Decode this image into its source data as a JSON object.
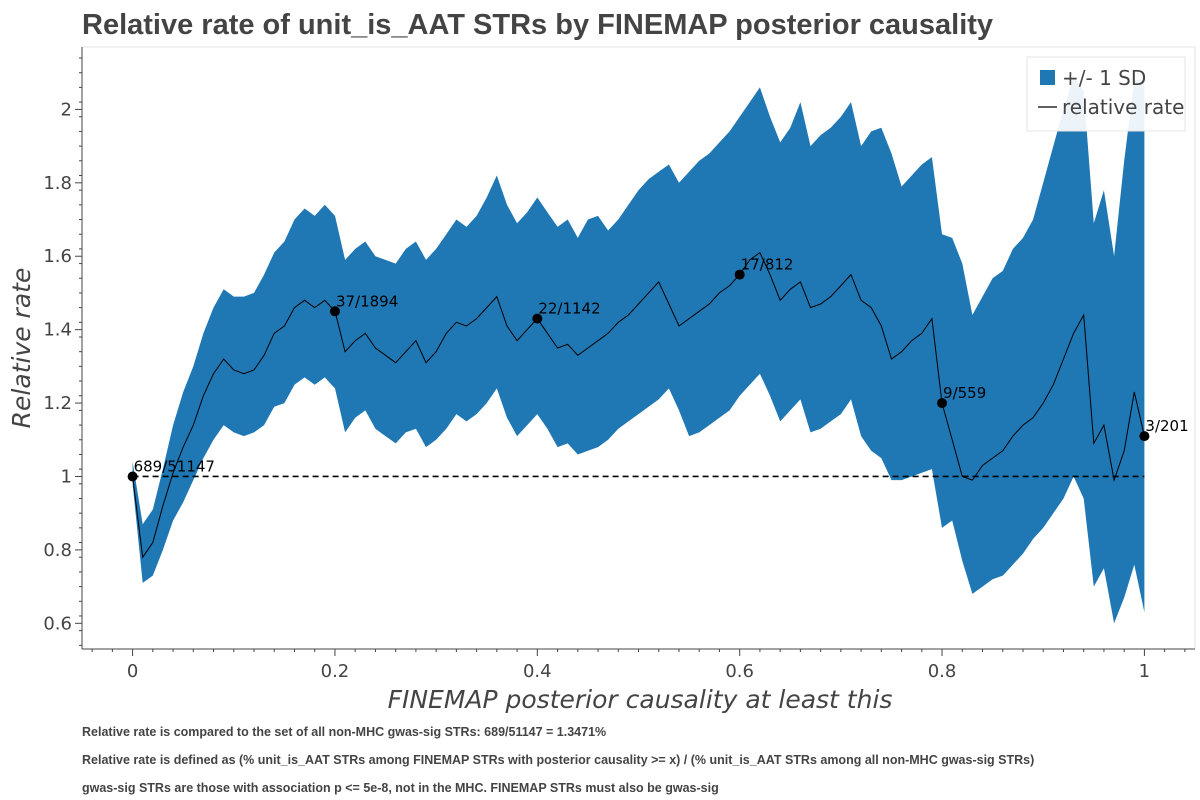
{
  "chart_data": {
    "type": "line",
    "title": "Relative rate of unit_is_AAT STRs by FINEMAP posterior causality",
    "xlabel": "FINEMAP posterior causality at least this",
    "ylabel": "Relative rate",
    "xlim": [
      -0.05,
      1.05
    ],
    "ylim": [
      0.53,
      2.17
    ],
    "xticks": [
      0,
      0.2,
      0.4,
      0.6,
      0.8,
      1
    ],
    "xtick_labels": [
      "0",
      "0.2",
      "0.4",
      "0.6",
      "0.8",
      "1"
    ],
    "yticks": [
      0.6,
      0.8,
      1,
      1.2,
      1.4,
      1.6,
      1.8,
      2
    ],
    "ytick_labels": [
      "0.6",
      "0.8",
      "1",
      "1.2",
      "1.4",
      "1.6",
      "1.8",
      "2"
    ],
    "grid": false,
    "legend_position": "top-right",
    "legend": [
      {
        "label": "+/- 1 SD",
        "type": "band",
        "color": "#1f77b4"
      },
      {
        "label": "relative rate",
        "type": "line",
        "color": "#000000"
      }
    ],
    "reference_line": {
      "y": 1,
      "style": "dashed",
      "color": "#000000"
    },
    "band": {
      "color": "#1f77b4",
      "x": [
        0,
        0.01,
        0.02,
        0.03,
        0.04,
        0.05,
        0.06,
        0.07,
        0.08,
        0.09,
        0.1,
        0.11,
        0.12,
        0.13,
        0.14,
        0.15,
        0.16,
        0.17,
        0.18,
        0.19,
        0.2,
        0.21,
        0.22,
        0.23,
        0.24,
        0.25,
        0.26,
        0.27,
        0.28,
        0.29,
        0.3,
        0.31,
        0.32,
        0.33,
        0.34,
        0.35,
        0.36,
        0.37,
        0.38,
        0.39,
        0.4,
        0.41,
        0.42,
        0.43,
        0.44,
        0.45,
        0.46,
        0.47,
        0.48,
        0.49,
        0.5,
        0.51,
        0.52,
        0.53,
        0.54,
        0.55,
        0.56,
        0.57,
        0.58,
        0.59,
        0.6,
        0.61,
        0.62,
        0.63,
        0.64,
        0.65,
        0.66,
        0.67,
        0.68,
        0.69,
        0.7,
        0.71,
        0.72,
        0.73,
        0.74,
        0.75,
        0.76,
        0.77,
        0.78,
        0.79,
        0.8,
        0.81,
        0.82,
        0.83,
        0.84,
        0.85,
        0.86,
        0.87,
        0.88,
        0.89,
        0.9,
        0.91,
        0.92,
        0.93,
        0.94,
        0.95,
        0.96,
        0.97,
        0.98,
        0.99,
        1
      ],
      "upper": [
        1.04,
        0.87,
        0.91,
        1.02,
        1.14,
        1.23,
        1.3,
        1.39,
        1.46,
        1.51,
        1.49,
        1.49,
        1.5,
        1.55,
        1.61,
        1.64,
        1.7,
        1.73,
        1.71,
        1.74,
        1.71,
        1.59,
        1.62,
        1.64,
        1.6,
        1.59,
        1.58,
        1.62,
        1.64,
        1.59,
        1.62,
        1.66,
        1.7,
        1.68,
        1.71,
        1.76,
        1.82,
        1.74,
        1.69,
        1.72,
        1.76,
        1.72,
        1.68,
        1.7,
        1.65,
        1.7,
        1.71,
        1.67,
        1.7,
        1.74,
        1.78,
        1.81,
        1.83,
        1.85,
        1.8,
        1.83,
        1.86,
        1.88,
        1.91,
        1.94,
        1.98,
        2.02,
        2.06,
        1.98,
        1.91,
        1.95,
        2.02,
        1.9,
        1.93,
        1.95,
        1.98,
        2.02,
        1.9,
        1.94,
        1.95,
        1.88,
        1.79,
        1.82,
        1.85,
        1.87,
        1.66,
        1.65,
        1.58,
        1.44,
        1.49,
        1.54,
        1.56,
        1.62,
        1.65,
        1.7,
        1.8,
        1.9,
        2.0,
        2.09,
        2.05,
        1.69,
        1.78,
        1.6,
        1.86,
        2.08,
        2.08
      ],
      "lower": [
        0.98,
        0.71,
        0.73,
        0.8,
        0.88,
        0.93,
        0.99,
        1.05,
        1.1,
        1.14,
        1.12,
        1.11,
        1.12,
        1.14,
        1.19,
        1.2,
        1.25,
        1.27,
        1.25,
        1.27,
        1.24,
        1.12,
        1.16,
        1.18,
        1.13,
        1.11,
        1.09,
        1.12,
        1.13,
        1.08,
        1.1,
        1.13,
        1.17,
        1.15,
        1.17,
        1.2,
        1.24,
        1.16,
        1.11,
        1.14,
        1.17,
        1.13,
        1.08,
        1.09,
        1.06,
        1.07,
        1.08,
        1.1,
        1.13,
        1.15,
        1.17,
        1.19,
        1.21,
        1.24,
        1.18,
        1.11,
        1.12,
        1.14,
        1.16,
        1.18,
        1.22,
        1.25,
        1.28,
        1.22,
        1.15,
        1.18,
        1.21,
        1.12,
        1.13,
        1.15,
        1.17,
        1.21,
        1.11,
        1.07,
        1.05,
        0.99,
        0.99,
        1.0,
        1.01,
        1.02,
        0.86,
        0.88,
        0.77,
        0.68,
        0.7,
        0.72,
        0.73,
        0.76,
        0.79,
        0.83,
        0.86,
        0.9,
        0.94,
        1.0,
        0.94,
        0.7,
        0.75,
        0.6,
        0.67,
        0.76,
        0.63
      ]
    },
    "series": [
      {
        "color": "#000000",
        "x": [
          0,
          0.01,
          0.02,
          0.03,
          0.04,
          0.05,
          0.06,
          0.07,
          0.08,
          0.09,
          0.1,
          0.11,
          0.12,
          0.13,
          0.14,
          0.15,
          0.16,
          0.17,
          0.18,
          0.19,
          0.2,
          0.21,
          0.22,
          0.23,
          0.24,
          0.25,
          0.26,
          0.27,
          0.28,
          0.29,
          0.3,
          0.31,
          0.32,
          0.33,
          0.34,
          0.35,
          0.36,
          0.37,
          0.38,
          0.39,
          0.4,
          0.41,
          0.42,
          0.43,
          0.44,
          0.45,
          0.46,
          0.47,
          0.48,
          0.49,
          0.5,
          0.51,
          0.52,
          0.53,
          0.54,
          0.55,
          0.56,
          0.57,
          0.58,
          0.59,
          0.6,
          0.61,
          0.62,
          0.63,
          0.64,
          0.65,
          0.66,
          0.67,
          0.68,
          0.69,
          0.7,
          0.71,
          0.72,
          0.73,
          0.74,
          0.75,
          0.76,
          0.77,
          0.78,
          0.79,
          0.8,
          0.81,
          0.82,
          0.83,
          0.84,
          0.85,
          0.86,
          0.87,
          0.88,
          0.89,
          0.9,
          0.91,
          0.92,
          0.93,
          0.94,
          0.95,
          0.96,
          0.97,
          0.98,
          0.99,
          1
        ],
        "values": [
          1.0,
          0.78,
          0.82,
          0.92,
          1.01,
          1.08,
          1.14,
          1.22,
          1.28,
          1.32,
          1.29,
          1.28,
          1.29,
          1.33,
          1.39,
          1.41,
          1.46,
          1.48,
          1.46,
          1.48,
          1.45,
          1.34,
          1.37,
          1.39,
          1.35,
          1.33,
          1.31,
          1.34,
          1.37,
          1.31,
          1.34,
          1.39,
          1.42,
          1.41,
          1.43,
          1.46,
          1.49,
          1.41,
          1.37,
          1.4,
          1.43,
          1.39,
          1.35,
          1.36,
          1.33,
          1.35,
          1.37,
          1.39,
          1.42,
          1.44,
          1.47,
          1.5,
          1.53,
          1.47,
          1.41,
          1.43,
          1.45,
          1.47,
          1.5,
          1.52,
          1.55,
          1.59,
          1.61,
          1.55,
          1.48,
          1.51,
          1.53,
          1.46,
          1.47,
          1.49,
          1.52,
          1.55,
          1.48,
          1.46,
          1.41,
          1.32,
          1.34,
          1.37,
          1.39,
          1.43,
          1.2,
          1.1,
          1.0,
          0.99,
          1.03,
          1.05,
          1.07,
          1.11,
          1.14,
          1.16,
          1.2,
          1.25,
          1.32,
          1.39,
          1.44,
          1.09,
          1.14,
          0.99,
          1.07,
          1.23,
          1.11
        ]
      }
    ],
    "markers": {
      "x": [
        0,
        0.2,
        0.4,
        0.6,
        0.8,
        1
      ],
      "y": [
        1.0,
        1.45,
        1.43,
        1.55,
        1.2,
        1.11
      ],
      "labels": [
        "689/51147",
        "37/1894",
        "22/1142",
        "17/812",
        "9/559",
        "3/201"
      ]
    }
  },
  "footnotes": [
    "Relative rate is compared to the set of all non-MHC gwas-sig STRs: 689/51147 = 1.3471%",
    "Relative rate is defined as (% unit_is_AAT STRs among FINEMAP STRs with posterior causality >= x) / (% unit_is_AAT STRs among all non-MHC gwas-sig STRs)",
    "gwas-sig STRs are those with association p <= 5e-8, not in the MHC. FINEMAP STRs must also be gwas-sig"
  ]
}
